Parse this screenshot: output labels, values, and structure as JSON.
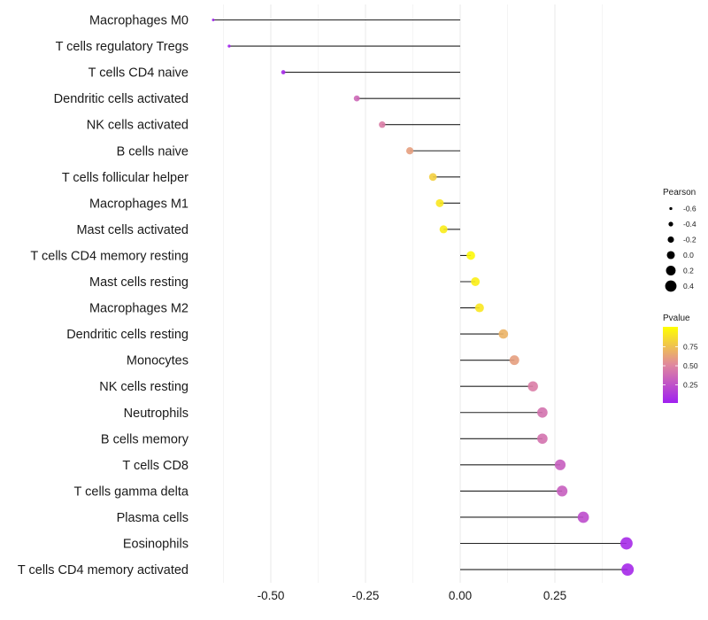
{
  "chart_data": {
    "type": "scatter",
    "subtype": "lollipop",
    "title": "",
    "xlabel": "",
    "ylabel": "",
    "xlim": [
      -0.67,
      0.47
    ],
    "x_ticks": [
      -0.5,
      -0.25,
      0.0,
      0.25
    ],
    "x_tick_labels": [
      "-0.50",
      "-0.25",
      "0.00",
      "0.25"
    ],
    "grid": true,
    "categories": [
      "Macrophages M0",
      "T cells regulatory  Tregs",
      "T cells CD4 naive",
      "Dendritic cells activated",
      "NK cells activated",
      "B cells naive",
      "T cells follicular helper",
      "Macrophages M1",
      "Mast cells activated",
      "T cells CD4 memory resting",
      "Mast cells resting",
      "Macrophages M2",
      "Dendritic cells resting",
      "Monocytes",
      "NK cells resting",
      "Neutrophils",
      "B cells memory",
      "T cells CD8",
      "T cells gamma delta",
      "Plasma cells",
      "Eosinophils",
      "T cells CD4 memory activated"
    ],
    "pearson": [
      -0.652,
      -0.61,
      -0.467,
      -0.273,
      -0.206,
      -0.133,
      -0.072,
      -0.054,
      -0.044,
      0.028,
      0.04,
      0.051,
      0.114,
      0.143,
      0.192,
      0.217,
      0.217,
      0.264,
      0.269,
      0.325,
      0.439,
      0.442
    ],
    "pvalue": [
      0.01,
      0.02,
      0.05,
      0.35,
      0.45,
      0.6,
      0.8,
      0.9,
      0.92,
      0.97,
      0.93,
      0.9,
      0.68,
      0.6,
      0.45,
      0.4,
      0.4,
      0.3,
      0.3,
      0.22,
      0.05,
      0.04
    ],
    "legend": {
      "placement": "right",
      "size": {
        "title": "Pearson",
        "values": [
          -0.6,
          -0.4,
          -0.2,
          0.0,
          0.2,
          0.4
        ],
        "labels": [
          "-0.6",
          "-0.4",
          "-0.2",
          "0.0",
          "0.2",
          "0.4"
        ]
      },
      "color": {
        "title": "Pvalue",
        "range": [
          0.0,
          1.0
        ],
        "breaks": [
          0.25,
          0.5,
          0.75
        ],
        "labels": [
          "0.25",
          "0.50",
          "0.75"
        ],
        "low_color": "#a020f0",
        "mid_color": "#e0879e",
        "high_color": "#ffff00"
      }
    }
  }
}
